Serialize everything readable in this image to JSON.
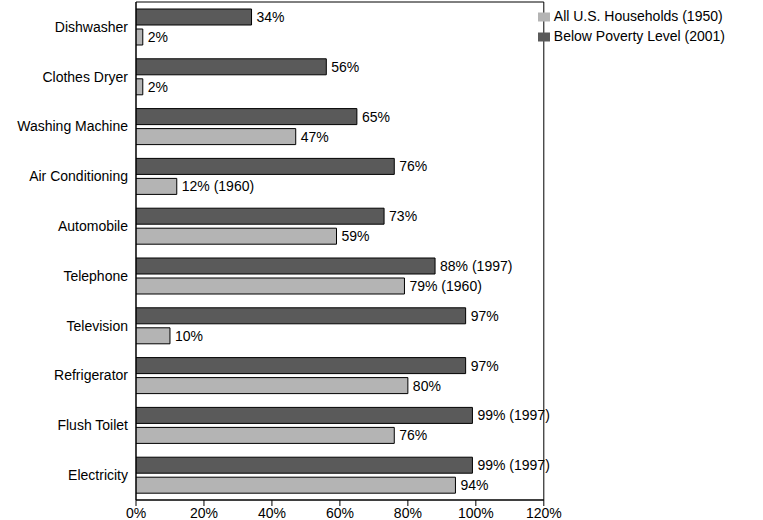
{
  "chart_data": {
    "type": "bar",
    "orientation": "horizontal",
    "grid": false,
    "legend": "upper right",
    "data_labels": true,
    "categories": [
      "Dishwasher",
      "Clothes Dryer",
      "Washing Machine",
      "Air Conditioning",
      "Automobile",
      "Telephone",
      "Television",
      "Refrigerator",
      "Flush Toilet",
      "Electricity"
    ],
    "series": [
      {
        "name": "Below Poverty Level (2001)",
        "color": "#5a5a5a",
        "values": [
          34,
          56,
          65,
          76,
          73,
          88,
          97,
          97,
          99,
          99
        ],
        "value_labels": [
          "34%",
          "56%",
          "65%",
          "76%",
          "73%",
          "88% (1997)",
          "97%",
          "97%",
          "99% (1997)",
          "99% (1997)"
        ]
      },
      {
        "name": "All U.S. Households (1950)",
        "color": "#b4b4b4",
        "values": [
          2,
          2,
          47,
          12,
          59,
          79,
          10,
          80,
          76,
          94
        ],
        "value_labels": [
          "2%",
          "2%",
          "47%",
          "12% (1960)",
          "59%",
          "79% (1960)",
          "10%",
          "80%",
          "76%",
          "94%"
        ]
      }
    ],
    "xlim": [
      0,
      120
    ],
    "xticks": [
      {
        "value": 0,
        "label": "0%"
      },
      {
        "value": 20,
        "label": "20%"
      },
      {
        "value": 40,
        "label": "40%"
      },
      {
        "value": 60,
        "label": "60%"
      },
      {
        "value": 80,
        "label": "80%"
      },
      {
        "value": 100,
        "label": "100%"
      },
      {
        "value": 120,
        "label": "120%"
      }
    ]
  }
}
